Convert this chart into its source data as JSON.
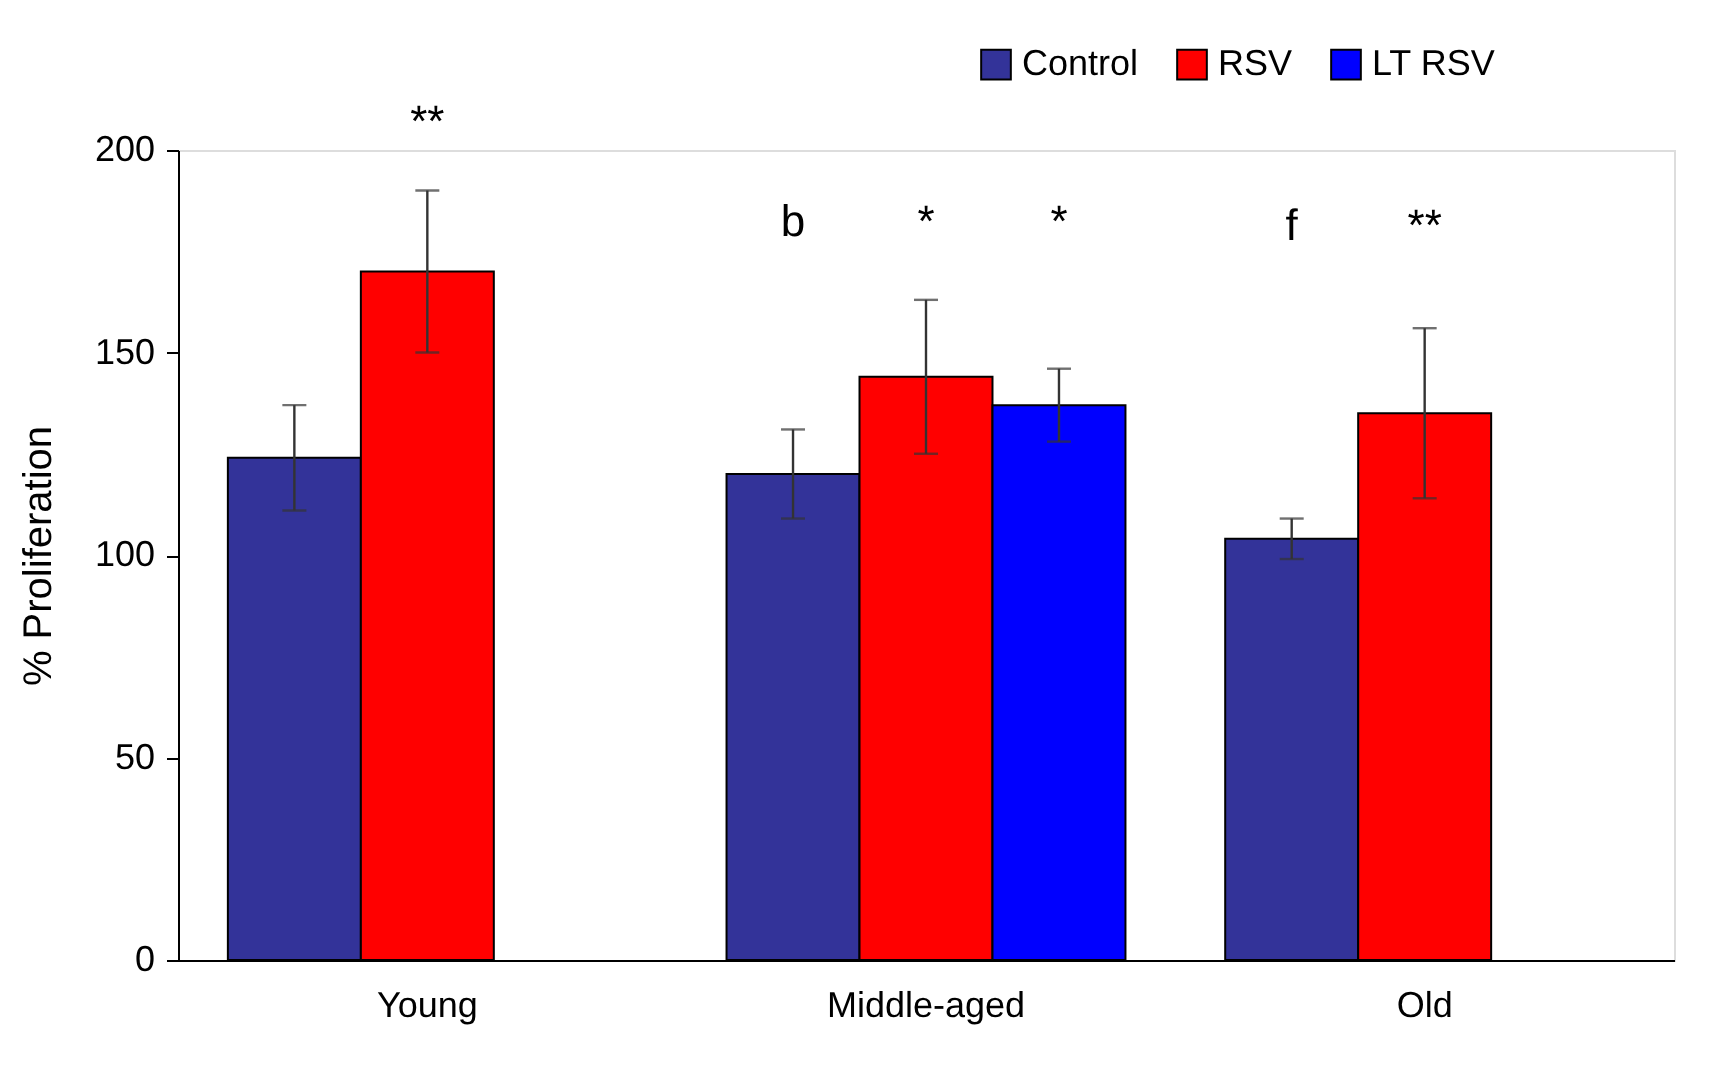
{
  "chart_data": {
    "type": "bar",
    "ylabel": "% Proliferation",
    "categories": [
      "Young",
      "Middle-aged",
      "Old"
    ],
    "series": [
      {
        "name": "Control",
        "color": "#333399",
        "values": [
          124,
          120,
          104
        ],
        "errors": [
          13,
          11,
          5
        ]
      },
      {
        "name": "RSV",
        "color": "#ff0000",
        "values": [
          170,
          144,
          135
        ],
        "errors": [
          20,
          19,
          21
        ]
      },
      {
        "name": "LT RSV",
        "color": "#0000ff",
        "values": [
          null,
          137,
          null
        ],
        "errors": [
          null,
          9,
          null
        ]
      }
    ],
    "annotations": [
      "**",
      "b",
      "*",
      "*",
      "f",
      "**"
    ],
    "ylim": [
      0,
      200
    ],
    "yticks": [
      0,
      50,
      100,
      150,
      200
    ],
    "grid": false,
    "legend": "top right"
  }
}
